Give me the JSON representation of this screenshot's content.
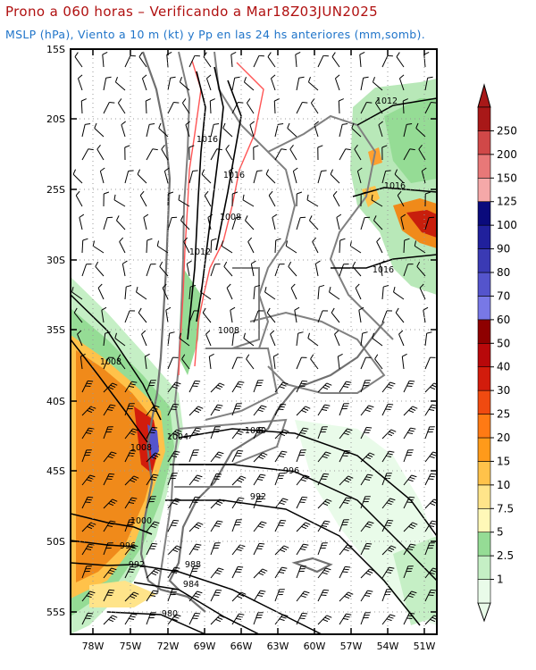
{
  "title": "Prono a 060 horas – Verificando a Mar18Z03JUN2025",
  "subtitle": "MSLP (hPa), Viento a 10 m (kt) y Pp en las 24 hs anteriores (mm,somb).",
  "lat_labels": [
    "15S",
    "20S",
    "25S",
    "30S",
    "35S",
    "40S",
    "45S",
    "50S",
    "55S"
  ],
  "lon_labels": [
    "78W",
    "75W",
    "72W",
    "69W",
    "66W",
    "63W",
    "60W",
    "57W",
    "54W",
    "51W"
  ],
  "isobar_labels": [
    "1012",
    "1016",
    "1016",
    "1016",
    "1016",
    "1008",
    "1012",
    "1008",
    "1008",
    "1008",
    "1004",
    "1000",
    "996",
    "992",
    "1000",
    "996",
    "992",
    "988",
    "984",
    "980"
  ],
  "colorbar": {
    "labels": [
      "1",
      "2.5",
      "5",
      "7.5",
      "10",
      "15",
      "20",
      "25",
      "30",
      "40",
      "50",
      "60",
      "70",
      "80",
      "90",
      "100",
      "125",
      "150",
      "200",
      "250"
    ],
    "colors": [
      "#e9fbe9",
      "#c5efc5",
      "#95dc95",
      "#fff8b8",
      "#ffe48a",
      "#ffc24a",
      "#ff9a1a",
      "#ff7a14",
      "#f04a10",
      "#d21c0c",
      "#b8080a",
      "#8e0000",
      "#7878e6",
      "#5454cc",
      "#3a3ab4",
      "#20209c",
      "#0a0a7c",
      "#f5a8a8",
      "#e87878",
      "#d04848",
      "#a81818"
    ]
  }
}
